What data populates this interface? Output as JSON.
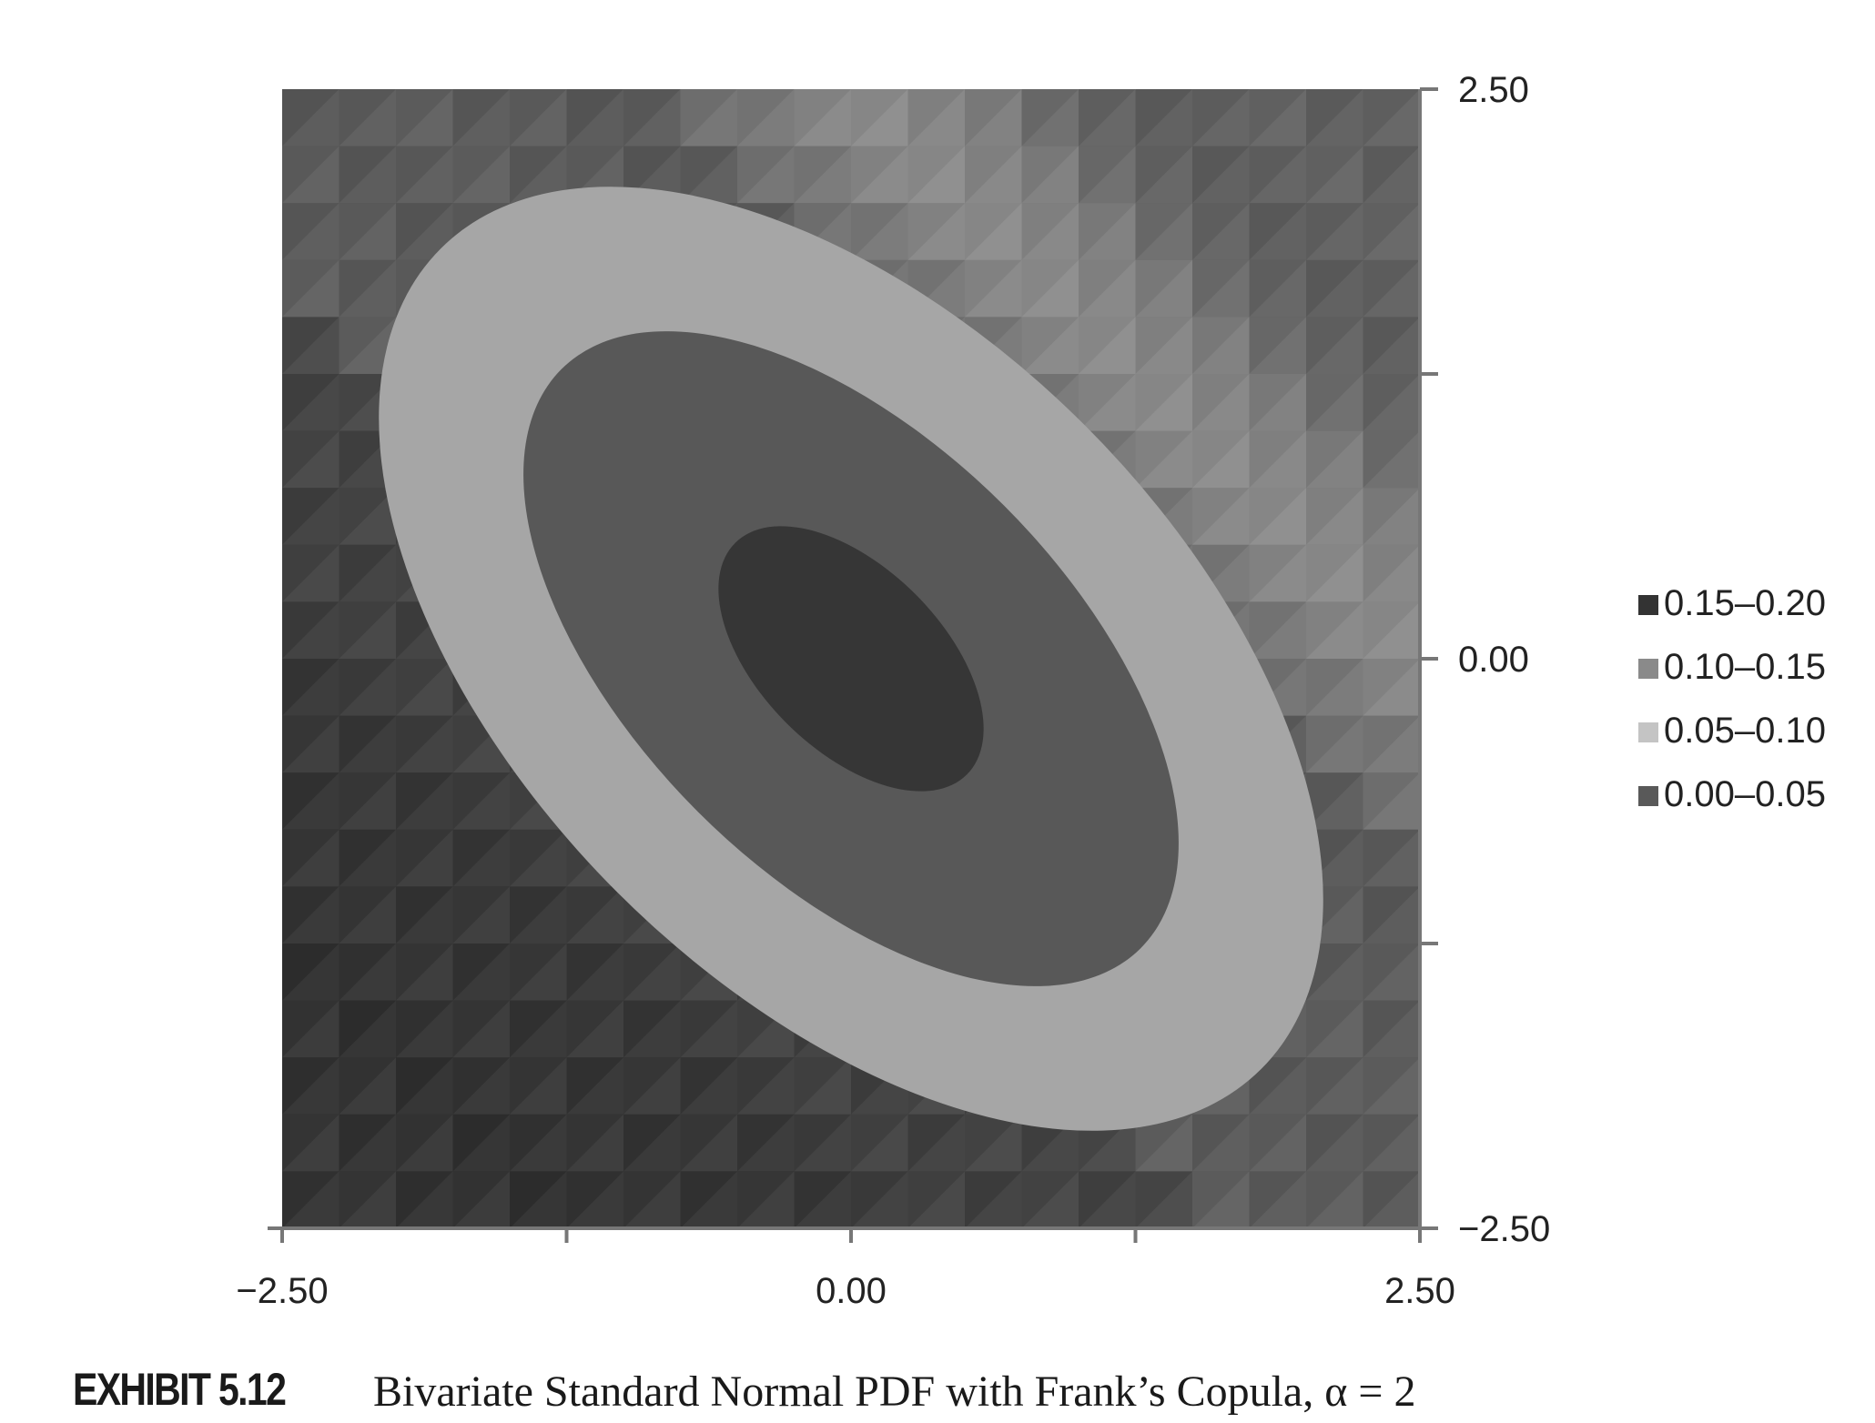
{
  "chart_data": {
    "type": "heatmap",
    "subtype": "bivariate-density-contour",
    "title": "",
    "xlabel": "",
    "ylabel": "",
    "xlim": [
      -2.5,
      2.5
    ],
    "ylim": [
      -2.5,
      2.5
    ],
    "x_ticks": [
      -2.5,
      -1.25,
      0,
      1.25,
      2.5
    ],
    "x_tick_labels": [
      "−2.50",
      "",
      "0.00",
      "",
      "2.50"
    ],
    "y_ticks": [
      2.5,
      1.25,
      0,
      -1.25,
      -2.5
    ],
    "y_tick_labels": [
      "2.50",
      "",
      "0.00",
      "",
      "−2.50"
    ],
    "y_axis_side": "right",
    "grid": false,
    "legend_position": "right",
    "copula": "Frank",
    "alpha": 2,
    "density_bands": [
      {
        "label": "0.15–0.20",
        "min": 0.15,
        "max": 0.2,
        "color": "#333333"
      },
      {
        "label": "0.10–0.15",
        "min": 0.1,
        "max": 0.15,
        "color": "#8a8a8a"
      },
      {
        "label": "0.05–0.10",
        "min": 0.05,
        "max": 0.1,
        "color": "#c4c4c4"
      },
      {
        "label": "0.00–0.05",
        "min": 0.0,
        "max": 0.05,
        "color": "#595959"
      }
    ],
    "fill_colors": {
      "background": "#575757",
      "outer_ring": "#a6a6a6",
      "middle_ring": "#585858",
      "core": "#363636",
      "axis": "#777777"
    }
  },
  "caption": {
    "label": "EXHIBIT 5.12",
    "text": "Bivariate Standard Normal PDF with Frank’s Copula, α = 2"
  }
}
